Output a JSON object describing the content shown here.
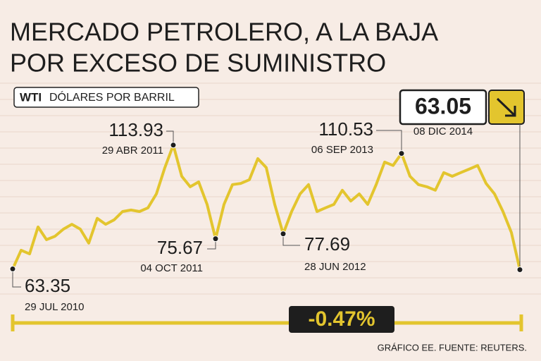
{
  "chart_data": {
    "type": "line",
    "title": "MERCADO PETROLERO, A LA BAJA",
    "title_line2": "POR EXCESO DE SUMINISTRO",
    "subtitle_bold": "WTI",
    "subtitle": "DÓLARES POR BARRIL",
    "values": [
      63.35,
      71.0,
      69.5,
      80.5,
      75.3,
      76.7,
      79.6,
      81.6,
      79.6,
      73.9,
      84.0,
      81.6,
      83.4,
      86.8,
      87.4,
      86.8,
      88.3,
      94.0,
      104.7,
      113.93,
      101.2,
      96.9,
      98.9,
      89.7,
      75.67,
      89.7,
      97.8,
      98.3,
      99.8,
      108.4,
      104.7,
      89.7,
      77.69,
      86.8,
      94.0,
      97.8,
      86.8,
      88.3,
      89.7,
      95.5,
      91.1,
      94.0,
      89.7,
      97.8,
      107.0,
      105.6,
      110.53,
      101.2,
      97.8,
      96.9,
      95.5,
      102.7,
      101.2,
      102.7,
      104.1,
      105.6,
      98.3,
      94.0,
      86.8,
      78.2,
      63.05
    ],
    "color": "#e3c52e",
    "ylim": [
      58,
      130
    ],
    "annotations": [
      {
        "value": 63.35,
        "date": "29 JUL 2010"
      },
      {
        "value": 113.93,
        "date": "29 ABR 2011"
      },
      {
        "value": 75.67,
        "date": "04 OCT 2011"
      },
      {
        "value": 77.69,
        "date": "28 JUN 2012"
      },
      {
        "value": 110.53,
        "date": "06 SEP 2013"
      },
      {
        "value": 63.05,
        "date": "08 DIC 2014"
      }
    ],
    "change": "-0.47%",
    "source": "GRÁFICO EE. FUENTE: REUTERS."
  }
}
